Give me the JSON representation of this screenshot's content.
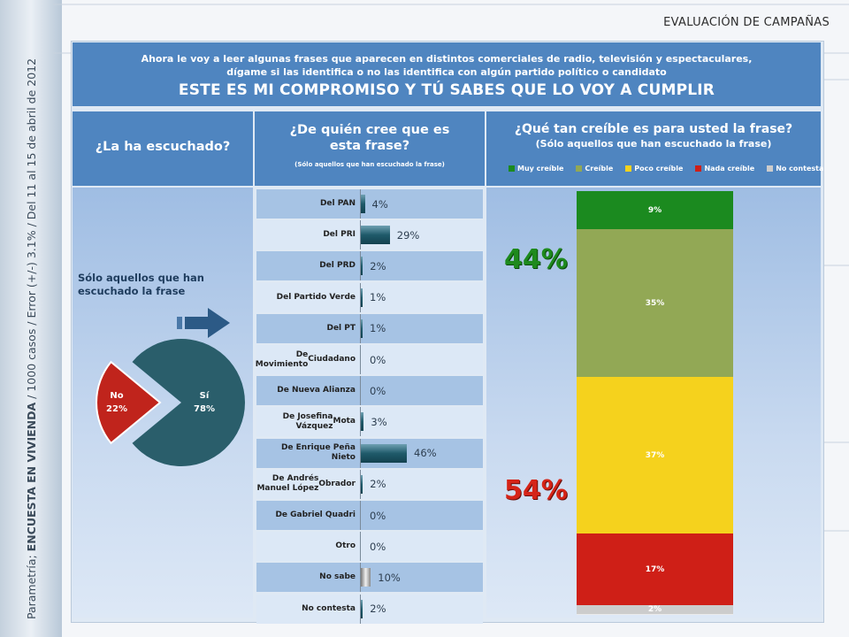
{
  "header": {
    "title": "EVALUACIÓN DE CAMPAÑAS"
  },
  "sidebar": {
    "source": "Parametría;",
    "survey": "ENCUESTA EN VIVIENDA",
    "details": "/ 1000 casos / Error (+/-) 3.1% / Del 11 al 15 de abril de 2012"
  },
  "question": {
    "intro_line1": "Ahora le voy a leer algunas frases que aparecen en distintos comerciales de radio, televisión y espectaculares,",
    "intro_line2": "dígame si las identifica o no las identifica con algún partido político o candidato",
    "phrase": "ESTE ES MI COMPROMISO Y TÚ SABES QUE LO VOY A CUMPLIR"
  },
  "columns": {
    "heard": {
      "title": "¿La ha escuchado?"
    },
    "who": {
      "title_line1": "¿De quién cree que es",
      "title_line2": "esta frase?",
      "note": "(Sólo aquellos que han escuchado la frase)"
    },
    "credible": {
      "title": "¿Qué tan creíble es para usted la frase?",
      "note": "(Sólo aquellos que han escuchado la frase)"
    }
  },
  "pie_note_line1": "Sólo aquellos que han",
  "pie_note_line2": "escuchado la frase",
  "colors": {
    "panel_blue": "#4f85c0",
    "pie_si": "#2a5e6b",
    "pie_no": "#c0241c",
    "muy": "#1b8a1f",
    "creible": "#92a855",
    "poco": "#f5d21d",
    "nada": "#cf1f17",
    "no_contesta": "#cccccc"
  },
  "chart_data": [
    {
      "type": "pie",
      "slices": [
        {
          "label": "Sí",
          "value": 78,
          "text": "78%"
        },
        {
          "label": "No",
          "value": 22,
          "text": "22%"
        }
      ]
    },
    {
      "type": "bar",
      "categories": [
        [
          "Del PAN"
        ],
        [
          "Del PRI"
        ],
        [
          "Del PRD"
        ],
        [
          "Del Partido Verde"
        ],
        [
          "Del PT"
        ],
        [
          "De Movimiento",
          "Ciudadano"
        ],
        [
          "De Nueva Alianza"
        ],
        [
          "De Josefina Vázquez",
          "Mota"
        ],
        [
          "De Enrique Peña Nieto"
        ],
        [
          "De Andrés Manuel López",
          "Obrador"
        ],
        [
          "De Gabriel Quadri"
        ],
        [
          "Otro"
        ],
        [
          "No sabe"
        ],
        [
          "No contesta"
        ]
      ],
      "values": [
        4,
        29,
        2,
        1,
        1,
        0,
        0,
        3,
        46,
        2,
        0,
        0,
        10,
        2
      ],
      "labels": [
        "4%",
        "29%",
        "2%",
        "1%",
        "1%",
        "0%",
        "0%",
        "3%",
        "46%",
        "2%",
        "0%",
        "0%",
        "10%",
        "2%"
      ]
    },
    {
      "type": "bar",
      "stacked": true,
      "legend": [
        "Muy creíble",
        "Creíble",
        "Poco creíble",
        "Nada creíble",
        "No contesta"
      ],
      "values": [
        9,
        35,
        37,
        17,
        2
      ],
      "labels": [
        "9%",
        "35%",
        "37%",
        "17%",
        "2%"
      ],
      "summary": [
        {
          "text": "44%"
        },
        {
          "text": "54%"
        }
      ]
    }
  ]
}
